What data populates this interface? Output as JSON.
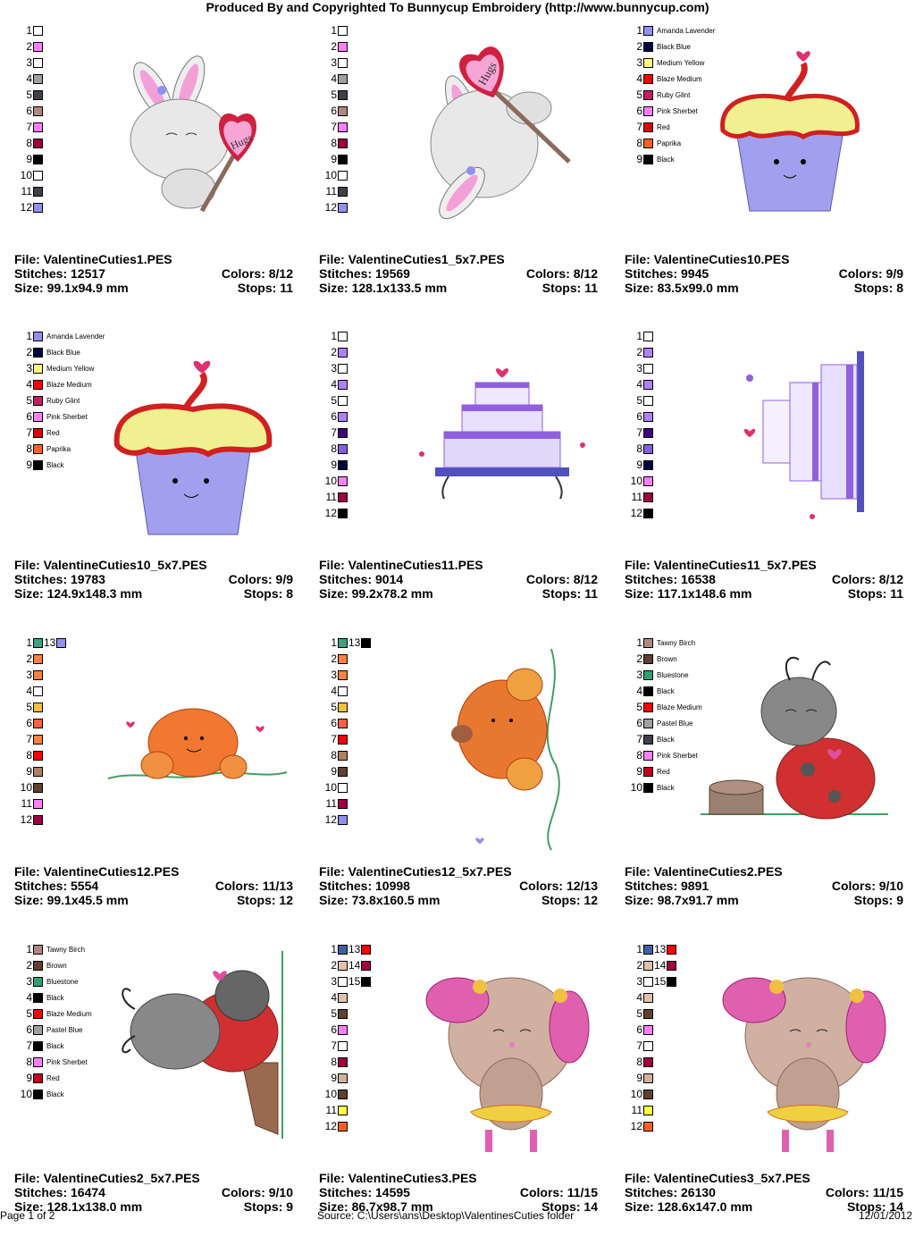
{
  "header": "Produced By and Copyrighted To Bunnycup Embroidery (http://www.bunnycup.com)",
  "labels": {
    "file": "File: ",
    "stitches": "Stitches: ",
    "colors": "Colors: ",
    "size": "Size: ",
    "stops": "Stops: "
  },
  "footer": {
    "page": "Page 1 of 2",
    "source": "Source: C:\\Users\\ans\\Desktop\\ValentinesCuties folder",
    "date": "12/01/2012"
  },
  "designs": [
    {
      "file": "ValentineCuties1.PES",
      "stitches": "12517",
      "colors": "8/12",
      "size": "99.1x94.9 mm",
      "stops": "11",
      "art": "bunny-hugs",
      "swatches": [
        {
          "n": "1",
          "color": "#ffffff"
        },
        {
          "n": "2",
          "color": "#ff80ff"
        },
        {
          "n": "3",
          "color": "#ffffff"
        },
        {
          "n": "4",
          "color": "#a0a0a0"
        },
        {
          "n": "5",
          "color": "#404048"
        },
        {
          "n": "6",
          "color": "#b08880"
        },
        {
          "n": "7",
          "color": "#ff80ff"
        },
        {
          "n": "8",
          "color": "#a00040"
        },
        {
          "n": "9",
          "color": "#000000"
        },
        {
          "n": "10",
          "color": "#ffffff"
        },
        {
          "n": "11",
          "color": "#404048"
        },
        {
          "n": "12",
          "color": "#9090f0"
        }
      ]
    },
    {
      "file": "ValentineCuties1_5x7.PES",
      "stitches": "19569",
      "colors": "8/12",
      "size": "128.1x133.5 mm",
      "stops": "11",
      "art": "bunny-hugs-tilt",
      "swatches": [
        {
          "n": "1",
          "color": "#ffffff"
        },
        {
          "n": "2",
          "color": "#ff80ff"
        },
        {
          "n": "3",
          "color": "#ffffff"
        },
        {
          "n": "4",
          "color": "#a0a0a0"
        },
        {
          "n": "5",
          "color": "#404048"
        },
        {
          "n": "6",
          "color": "#b08880"
        },
        {
          "n": "7",
          "color": "#ff80ff"
        },
        {
          "n": "8",
          "color": "#a00040"
        },
        {
          "n": "9",
          "color": "#000000"
        },
        {
          "n": "10",
          "color": "#ffffff"
        },
        {
          "n": "11",
          "color": "#404048"
        },
        {
          "n": "12",
          "color": "#9090f0"
        }
      ]
    },
    {
      "file": "ValentineCuties10.PES",
      "stitches": "9945",
      "colors": "9/9",
      "size": "83.5x99.0 mm",
      "stops": "8",
      "art": "cupcake",
      "swatches": [
        {
          "n": "1",
          "color": "#9090f0",
          "name": "Amanda Lavender"
        },
        {
          "n": "2",
          "color": "#000040",
          "name": "Black Blue"
        },
        {
          "n": "3",
          "color": "#ffff80",
          "name": "Medium Yellow"
        },
        {
          "n": "4",
          "color": "#ff0000",
          "name": "Blaze Medium"
        },
        {
          "n": "5",
          "color": "#c02060",
          "name": "Ruby Glint"
        },
        {
          "n": "6",
          "color": "#ff80ff",
          "name": "Pink Sherbet"
        },
        {
          "n": "7",
          "color": "#e00000",
          "name": "Red"
        },
        {
          "n": "8",
          "color": "#ff6020",
          "name": "Paprika"
        },
        {
          "n": "9",
          "color": "#000000",
          "name": "Black"
        }
      ]
    },
    {
      "file": "ValentineCuties10_5x7.PES",
      "stitches": "19783",
      "colors": "9/9",
      "size": "124.9x148.3 mm",
      "stops": "8",
      "art": "cupcake-large",
      "swatches": [
        {
          "n": "1",
          "color": "#9090f0",
          "name": "Amanda Lavender"
        },
        {
          "n": "2",
          "color": "#000040",
          "name": "Black Blue"
        },
        {
          "n": "3",
          "color": "#ffff80",
          "name": "Medium Yellow"
        },
        {
          "n": "4",
          "color": "#ff0000",
          "name": "Blaze Medium"
        },
        {
          "n": "5",
          "color": "#c02060",
          "name": "Ruby Glint"
        },
        {
          "n": "6",
          "color": "#ff80ff",
          "name": "Pink Sherbet"
        },
        {
          "n": "7",
          "color": "#e00000",
          "name": "Red"
        },
        {
          "n": "8",
          "color": "#ff6020",
          "name": "Paprika"
        },
        {
          "n": "9",
          "color": "#000000",
          "name": "Black"
        }
      ]
    },
    {
      "file": "ValentineCuties11.PES",
      "stitches": "9014",
      "colors": "8/12",
      "size": "99.2x78.2 mm",
      "stops": "11",
      "art": "cake",
      "swatches": [
        {
          "n": "1",
          "color": "#ffffff"
        },
        {
          "n": "2",
          "color": "#b080ff"
        },
        {
          "n": "3",
          "color": "#ffffff"
        },
        {
          "n": "4",
          "color": "#b080ff"
        },
        {
          "n": "5",
          "color": "#ffffff"
        },
        {
          "n": "6",
          "color": "#b080ff"
        },
        {
          "n": "7",
          "color": "#400080"
        },
        {
          "n": "8",
          "color": "#8060e0"
        },
        {
          "n": "9",
          "color": "#000040"
        },
        {
          "n": "10",
          "color": "#ff80ff"
        },
        {
          "n": "11",
          "color": "#a00040"
        },
        {
          "n": "12",
          "color": "#000000"
        }
      ]
    },
    {
      "file": "ValentineCuties11_5x7.PES",
      "stitches": "16538",
      "colors": "8/12",
      "size": "117.1x148.6 mm",
      "stops": "11",
      "art": "cake-side",
      "swatches": [
        {
          "n": "1",
          "color": "#ffffff"
        },
        {
          "n": "2",
          "color": "#b080ff"
        },
        {
          "n": "3",
          "color": "#ffffff"
        },
        {
          "n": "4",
          "color": "#b080ff"
        },
        {
          "n": "5",
          "color": "#ffffff"
        },
        {
          "n": "6",
          "color": "#b080ff"
        },
        {
          "n": "7",
          "color": "#400080"
        },
        {
          "n": "8",
          "color": "#8060e0"
        },
        {
          "n": "9",
          "color": "#000040"
        },
        {
          "n": "10",
          "color": "#ff80ff"
        },
        {
          "n": "11",
          "color": "#a00040"
        },
        {
          "n": "12",
          "color": "#000000"
        }
      ]
    },
    {
      "file": "ValentineCuties12.PES",
      "stitches": "5554",
      "colors": "11/13",
      "size": "99.1x45.5 mm",
      "stops": "12",
      "art": "pumpkins",
      "extra": {
        "n": "13",
        "color": "#9090f0"
      },
      "swatches": [
        {
          "n": "1",
          "color": "#40a080"
        },
        {
          "n": "2",
          "color": "#ff8040"
        },
        {
          "n": "3",
          "color": "#ff8040"
        },
        {
          "n": "4",
          "color": "#ffffff"
        },
        {
          "n": "5",
          "color": "#ffc040"
        },
        {
          "n": "6",
          "color": "#ff6040"
        },
        {
          "n": "7",
          "color": "#ff8040"
        },
        {
          "n": "8",
          "color": "#ff0000"
        },
        {
          "n": "9",
          "color": "#b08060"
        },
        {
          "n": "10",
          "color": "#604030"
        },
        {
          "n": "11",
          "color": "#ff80ff"
        },
        {
          "n": "12",
          "color": "#a00040"
        }
      ]
    },
    {
      "file": "ValentineCuties12_5x7.PES",
      "stitches": "10998",
      "colors": "12/13",
      "size": "73.8x160.5 mm",
      "stops": "12",
      "art": "pumpkins-vertical",
      "extra": {
        "n": "13",
        "color": "#000000"
      },
      "swatches": [
        {
          "n": "1",
          "color": "#40a080"
        },
        {
          "n": "2",
          "color": "#ff8040"
        },
        {
          "n": "3",
          "color": "#ff8040"
        },
        {
          "n": "4",
          "color": "#ffffff"
        },
        {
          "n": "5",
          "color": "#ffc040"
        },
        {
          "n": "6",
          "color": "#ff6040"
        },
        {
          "n": "7",
          "color": "#ff0000"
        },
        {
          "n": "8",
          "color": "#b08060"
        },
        {
          "n": "9",
          "color": "#604030"
        },
        {
          "n": "10",
          "color": "#ffffff"
        },
        {
          "n": "11",
          "color": "#a00040"
        },
        {
          "n": "12",
          "color": "#9090f0"
        }
      ]
    },
    {
      "file": "ValentineCuties2.PES",
      "stitches": "9891",
      "colors": "9/10",
      "size": "98.7x91.7 mm",
      "stops": "9",
      "art": "ladybug",
      "swatches": [
        {
          "n": "1",
          "color": "#b08880",
          "name": "Tawny Birch"
        },
        {
          "n": "2",
          "color": "#604030",
          "name": "Brown"
        },
        {
          "n": "3",
          "color": "#30a070",
          "name": "Bluestone"
        },
        {
          "n": "4",
          "color": "#000000",
          "name": "Black"
        },
        {
          "n": "5",
          "color": "#ff0000",
          "name": "Blaze Medium"
        },
        {
          "n": "6",
          "color": "#a0a0a0",
          "name": "Pastel Blue"
        },
        {
          "n": "7",
          "color": "#404048",
          "name": "Black"
        },
        {
          "n": "8",
          "color": "#ff80ff",
          "name": "Pink Sherbet"
        },
        {
          "n": "9",
          "color": "#c00020",
          "name": "Red"
        },
        {
          "n": "10",
          "color": "#000000",
          "name": "Black"
        }
      ]
    },
    {
      "file": "ValentineCuties2_5x7.PES",
      "stitches": "16474",
      "colors": "9/10",
      "size": "128.1x138.0 mm",
      "stops": "9",
      "art": "ladybug-stump",
      "swatches": [
        {
          "n": "1",
          "color": "#b08880",
          "name": "Tawny Birch"
        },
        {
          "n": "2",
          "color": "#604030",
          "name": "Brown"
        },
        {
          "n": "3",
          "color": "#30a070",
          "name": "Bluestone"
        },
        {
          "n": "4",
          "color": "#000000",
          "name": "Black"
        },
        {
          "n": "5",
          "color": "#ff0000",
          "name": "Blaze Medium"
        },
        {
          "n": "6",
          "color": "#a0a0a0",
          "name": "Pastel Blue"
        },
        {
          "n": "7",
          "color": "#000000",
          "name": "Black"
        },
        {
          "n": "8",
          "color": "#ff80ff",
          "name": "Pink Sherbet"
        },
        {
          "n": "9",
          "color": "#c00020",
          "name": "Red"
        },
        {
          "n": "10",
          "color": "#000000",
          "name": "Black"
        }
      ]
    },
    {
      "file": "ValentineCuties3.PES",
      "stitches": "14595",
      "colors": "11/15",
      "size": "86.7x98.7 mm",
      "stops": "14",
      "art": "bear-ballerina",
      "swatches": [
        {
          "n": "1",
          "color": "#4060a0",
          "extra": {
            "n": "13",
            "color": "#ff0000"
          }
        },
        {
          "n": "2",
          "color": "#e0c0b0",
          "extra": {
            "n": "14",
            "color": "#a00040"
          }
        },
        {
          "n": "3",
          "color": "#ffffff",
          "extra": {
            "n": "15",
            "color": "#000000"
          }
        },
        {
          "n": "4",
          "color": "#e0c0b0"
        },
        {
          "n": "5",
          "color": "#604030"
        },
        {
          "n": "6",
          "color": "#ff80ff"
        },
        {
          "n": "7",
          "color": "#ffffff"
        },
        {
          "n": "8",
          "color": "#a00040"
        },
        {
          "n": "9",
          "color": "#d0b0a0"
        },
        {
          "n": "10",
          "color": "#604030"
        },
        {
          "n": "11",
          "color": "#ffff40"
        },
        {
          "n": "12",
          "color": "#ff6020"
        }
      ]
    },
    {
      "file": "ValentineCuties3_5x7.PES",
      "stitches": "26130",
      "colors": "11/15",
      "size": "128.6x147.0 mm",
      "stops": "14",
      "art": "bear-ballerina-large",
      "swatches": [
        {
          "n": "1",
          "color": "#4060a0",
          "extra": {
            "n": "13",
            "color": "#ff0000"
          }
        },
        {
          "n": "2",
          "color": "#e0c0b0",
          "extra": {
            "n": "14",
            "color": "#a00040"
          }
        },
        {
          "n": "3",
          "color": "#ffffff",
          "extra": {
            "n": "15",
            "color": "#000000"
          }
        },
        {
          "n": "4",
          "color": "#e0c0b0"
        },
        {
          "n": "5",
          "color": "#604030"
        },
        {
          "n": "6",
          "color": "#ff80ff"
        },
        {
          "n": "7",
          "color": "#ffffff"
        },
        {
          "n": "8",
          "color": "#a00040"
        },
        {
          "n": "9",
          "color": "#d0b0a0"
        },
        {
          "n": "10",
          "color": "#604030"
        },
        {
          "n": "11",
          "color": "#ffff40"
        },
        {
          "n": "12",
          "color": "#ff6020"
        }
      ]
    }
  ]
}
